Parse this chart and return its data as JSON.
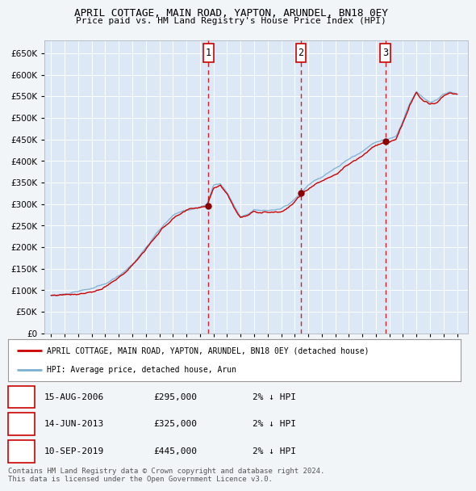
{
  "title": "APRIL COTTAGE, MAIN ROAD, YAPTON, ARUNDEL, BN18 0EY",
  "subtitle": "Price paid vs. HM Land Registry's House Price Index (HPI)",
  "bg_color": "#f0f4f8",
  "plot_bg_color": "#dce8f5",
  "grid_color": "#c8d8e8",
  "ylim": [
    0,
    680000
  ],
  "yticks": [
    0,
    50000,
    100000,
    150000,
    200000,
    250000,
    300000,
    350000,
    400000,
    450000,
    500000,
    550000,
    600000,
    650000
  ],
  "sale_dates": [
    2006.62,
    2013.45,
    2019.7
  ],
  "sale_prices": [
    295000,
    325000,
    445000
  ],
  "sale_labels": [
    "1",
    "2",
    "3"
  ],
  "legend_house_label": "APRIL COTTAGE, MAIN ROAD, YAPTON, ARUNDEL, BN18 0EY (detached house)",
  "legend_hpi_label": "HPI: Average price, detached house, Arun",
  "table_entries": [
    {
      "num": "1",
      "date": "15-AUG-2006",
      "price": "£295,000",
      "note": "2% ↓ HPI"
    },
    {
      "num": "2",
      "date": "14-JUN-2013",
      "price": "£325,000",
      "note": "2% ↓ HPI"
    },
    {
      "num": "3",
      "date": "10-SEP-2019",
      "price": "£445,000",
      "note": "2% ↓ HPI"
    }
  ],
  "footer": "Contains HM Land Registry data © Crown copyright and database right 2024.\nThis data is licensed under the Open Government Licence v3.0.",
  "hpi_color": "#7ab0d4",
  "price_color": "#cc0000",
  "dashed_color": "#cc0000",
  "dot_color": "#8b0000"
}
